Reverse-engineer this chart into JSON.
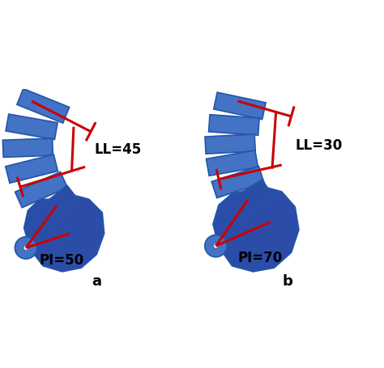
{
  "fig_width": 4.74,
  "fig_height": 4.55,
  "dpi": 100,
  "bg_color": "#ffffff",
  "vc": "#4472C4",
  "ve": "#2255AA",
  "pc": "#2B4DA8",
  "rc": "#CC0000",
  "label_a": "a",
  "label_b": "b",
  "label_ll_a": "LL=45",
  "label_pi_a": "PI=50",
  "label_ll_b": "LL=30",
  "label_pi_b": "PI=70",
  "font_size": 12
}
